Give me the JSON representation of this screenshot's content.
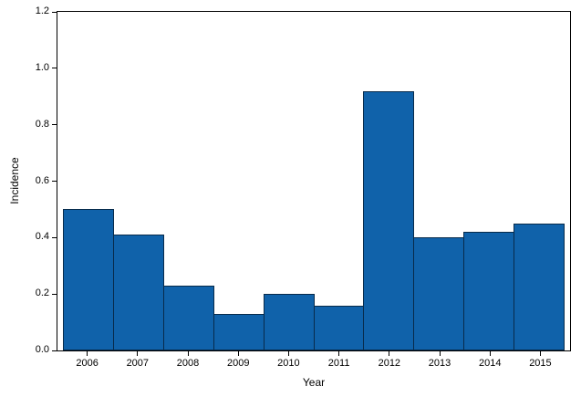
{
  "chart_data": {
    "type": "bar",
    "title": "",
    "categories": [
      "2006",
      "2007",
      "2008",
      "2009",
      "2010",
      "2011",
      "2012",
      "2013",
      "2014",
      "2015"
    ],
    "values": [
      0.5,
      0.41,
      0.23,
      0.13,
      0.2,
      0.16,
      0.92,
      0.4,
      0.42,
      0.45
    ],
    "xlabel": "Year",
    "ylabel": "Incidence",
    "ylim": [
      0,
      1.2
    ],
    "ytick_values": [
      0.0,
      0.2,
      0.4,
      0.6,
      0.8,
      1.0,
      1.2
    ],
    "ytick_labels": [
      "0.0",
      "0.2",
      "0.4",
      "0.6",
      "0.8",
      "1.0",
      "1.2"
    ],
    "grid": false,
    "legend": "none",
    "colors": {
      "bar_fill": "#1062AA",
      "bar_border": "#082B4B",
      "frame": "#000000",
      "background": "#FFFFFF"
    }
  }
}
